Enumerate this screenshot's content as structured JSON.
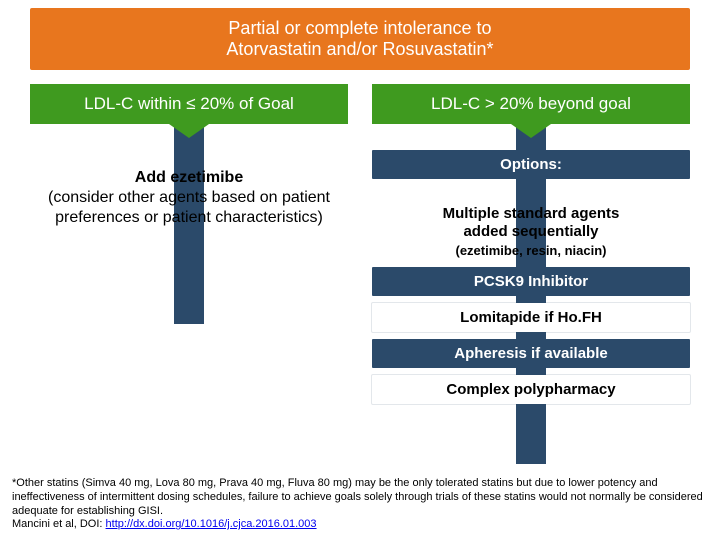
{
  "colors": {
    "header_bg": "#e8761e",
    "header_text": "#ffffff",
    "green_bg": "#3f9a1f",
    "blue_bg": "#2b4a6a"
  },
  "header": {
    "line1": "Partial or complete intolerance to",
    "line2": "Atorvastatin and/or Rosuvastatin*"
  },
  "left": {
    "title": "LDL-C within ≤ 20% of Goal",
    "bold": "Add ezetimibe",
    "rest": "(consider other agents based on patient preferences or patient characteristics)"
  },
  "right": {
    "title": "LDL-C > 20% beyond goal",
    "options_label": "Options:",
    "multi_bold1": "Multiple standard agents",
    "multi_bold2": "added sequentially",
    "multi_sub": "(ezetimibe, resin, niacin)",
    "items": [
      {
        "label": "PCSK9 Inhibitor",
        "style": "blue"
      },
      {
        "label": "Lomitapide if Ho.FH",
        "style": "white"
      },
      {
        "label": "Apheresis if available",
        "style": "blue"
      },
      {
        "label": "Complex polypharmacy",
        "style": "white"
      }
    ]
  },
  "footnote": {
    "text": "*Other statins (Simva 40 mg, Lova 80 mg, Prava 40 mg, Fluva 80 mg) may be the only tolerated statins but due to lower potency and ineffectiveness of intermittent dosing schedules, failure to achieve goals solely through trials of these statins would not normally be considered adequate for establishing GISI.",
    "cite_prefix": "Mancini et al, DOI: ",
    "cite_link": "http://dx.doi.org/10.1016/j.cjca.2016.01.003"
  }
}
